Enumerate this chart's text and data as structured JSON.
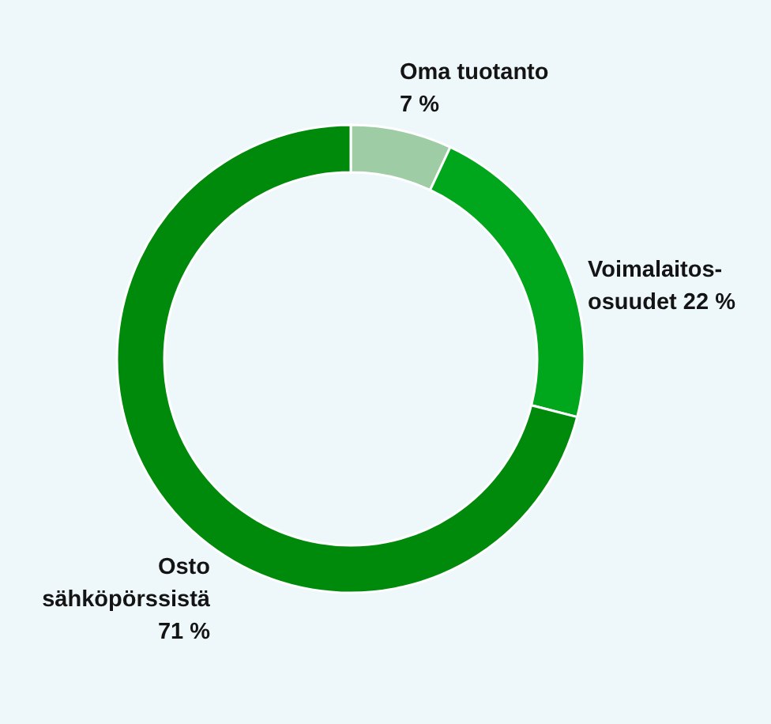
{
  "chart_data": {
    "type": "donut",
    "categories": [
      "Oma tuotanto",
      "Voimalaitos-osuudet",
      "Osto sähköpörssistä"
    ],
    "values": [
      7,
      22,
      71
    ],
    "value_labels": [
      "7 %",
      "22 %",
      "71 %"
    ],
    "colors": [
      "#9ecda5",
      "#00a61c",
      "#008a0b"
    ]
  }
}
